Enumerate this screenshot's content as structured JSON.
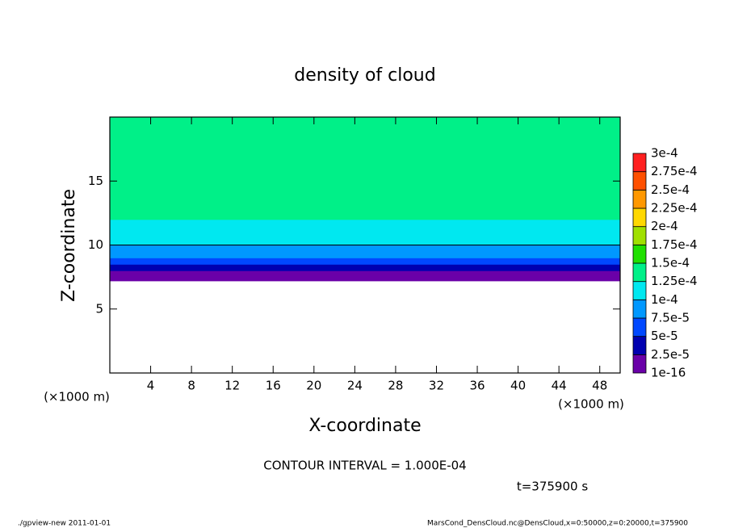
{
  "chart_data": {
    "type": "contour",
    "title": "density of cloud",
    "x_label": "X-coordinate",
    "y_label": "Z-coordinate",
    "x_unit": "(×1000 m)",
    "y_unit": "(×1000 m)",
    "xlim": [
      0,
      50
    ],
    "xticks": [
      4,
      8,
      12,
      16,
      20,
      24,
      28,
      32,
      36,
      40,
      44,
      48
    ],
    "ylim": [
      0,
      20
    ],
    "yticks": [
      5,
      10,
      15
    ],
    "z": [
      7.2,
      7.5,
      8,
      8.5,
      9,
      9.5,
      10,
      11,
      12,
      14,
      16,
      18
    ],
    "density": [
      1e-05,
      2e-05,
      4e-05,
      6e-05,
      8e-05,
      9.5e-05,
      0.0001,
      0.00012,
      0.00013,
      0.000135,
      0.000135,
      0.00013
    ],
    "contour_level": 0.0001,
    "colorbar": {
      "ticks": [
        {
          "value": 1e-16,
          "label": "1e-16"
        },
        {
          "value": 2.5e-05,
          "label": "2.5e-5"
        },
        {
          "value": 5e-05,
          "label": "5e-5"
        },
        {
          "value": 7.5e-05,
          "label": "7.5e-5"
        },
        {
          "value": 0.0001,
          "label": "1e-4"
        },
        {
          "value": 0.000125,
          "label": "1.25e-4"
        },
        {
          "value": 0.00015,
          "label": "1.5e-4"
        },
        {
          "value": 0.000175,
          "label": "1.75e-4"
        },
        {
          "value": 0.0002,
          "label": "2e-4"
        },
        {
          "value": 0.000225,
          "label": "2.25e-4"
        },
        {
          "value": 0.00025,
          "label": "2.5e-4"
        },
        {
          "value": 0.000275,
          "label": "2.75e-4"
        },
        {
          "value": 0.0003,
          "label": "3e-4"
        }
      ],
      "colors": [
        "#6a00a8",
        "#0000b0",
        "#0048ff",
        "#0098ff",
        "#00e8f0",
        "#00f088",
        "#20e000",
        "#a0e000",
        "#ffd800",
        "#ff9800",
        "#ff5000",
        "#ff2020",
        "#ff8c8c"
      ]
    },
    "contour_interval": "CONTOUR INTERVAL = 1.000E-04",
    "time_label": "t=375900 s",
    "footer_left": "./gpview-new   2011-01-01",
    "footer_right": "MarsCond_DensCloud.nc@DensCloud,x=0:50000,z=0:20000,t=375900"
  }
}
